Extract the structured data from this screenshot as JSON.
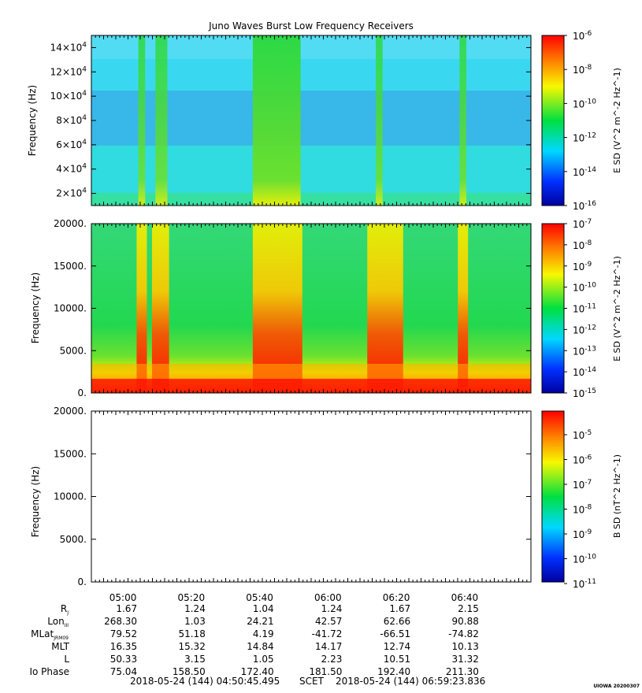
{
  "title": "Juno Waves Burst Low Frequency Receivers",
  "panels": [
    {
      "ylabel": "Frequency (Hz)",
      "yticks": [
        "2x10^4",
        "4x10^4",
        "6x10^4",
        "8x10^4",
        "10x10^4",
        "12x10^4",
        "14x10^4"
      ],
      "cbar_label": "E SD (V^2 m^-2 Hz^-1)",
      "cbar_ticks": [
        "10^-6",
        "10^-8",
        "10^-10",
        "10^-12",
        "10^-14",
        "10^-16"
      ]
    },
    {
      "ylabel": "Frequency (Hz)",
      "yticks": [
        "20000.",
        "15000.",
        "10000.",
        "5000.",
        "0."
      ],
      "cbar_label": "E SD (V^2 m^-2 Hz^-1)",
      "cbar_ticks": [
        "10^-7",
        "10^-8",
        "10^-9",
        "10^-10",
        "10^-11",
        "10^-12",
        "10^-13",
        "10^-14",
        "10^-15"
      ]
    },
    {
      "ylabel": "Frequency (Hz)",
      "yticks": [
        "20000.",
        "15000.",
        "10000.",
        "5000.",
        "0."
      ],
      "cbar_label": "B SD (nT^2 Hz^-1)",
      "cbar_ticks": [
        "10^-5",
        "10^-6",
        "10^-7",
        "10^-8",
        "10^-9",
        "10^-10",
        "10^-11"
      ]
    }
  ],
  "x_ticks": [
    "05:00",
    "05:20",
    "05:40",
    "06:00",
    "06:20",
    "06:40"
  ],
  "ephemeris": [
    {
      "label": "R",
      "sub": "J",
      "values": [
        "1.67",
        "1.24",
        "1.04",
        "1.24",
        "1.67",
        "2.15"
      ]
    },
    {
      "label": "Lon",
      "sub": "III",
      "values": [
        "268.30",
        "1.03",
        "24.21",
        "42.57",
        "62.66",
        "90.88"
      ]
    },
    {
      "label": "MLat",
      "sub": "JRM09",
      "values": [
        "79.52",
        "51.18",
        "4.19",
        "-41.72",
        "-66.51",
        "-74.82"
      ]
    },
    {
      "label": "MLT",
      "sub": "",
      "values": [
        "16.35",
        "15.32",
        "14.84",
        "14.17",
        "12.74",
        "10.13"
      ]
    },
    {
      "label": "L",
      "sub": "",
      "values": [
        "50.33",
        "3.15",
        "1.05",
        "2.23",
        "10.51",
        "31.32"
      ]
    },
    {
      "label": "Io Phase",
      "sub": "",
      "values": [
        "75.04",
        "158.50",
        "172.40",
        "181.50",
        "192.40",
        "211.30"
      ]
    }
  ],
  "time_start": "2018-05-24 (144) 04:50:45.495",
  "time_mid_label": "SCET",
  "time_end": "2018-05-24 (144) 06:59:23.836",
  "stamp": "UIOWA 20200307",
  "colors": {
    "background_panel1": "#3ad8f0",
    "background_panel2": "#36e04a",
    "panel3_fill": "#ffffff",
    "colormap": [
      "#0000a0",
      "#0030ff",
      "#00d8ff",
      "#00e040",
      "#f8f800",
      "#ff8000",
      "#ff0000"
    ]
  },
  "chart_data": [
    {
      "type": "heatmap",
      "title": "Juno Waves Burst Low Frequency Receivers",
      "ylabel": "Frequency (Hz)",
      "ylim": [
        10000,
        150000
      ],
      "xlim": [
        "04:50:45",
        "06:59:23"
      ],
      "zlabel": "E SD (V^2 m^-2 Hz^-1)",
      "zlim": [
        1e-16,
        1e-06
      ],
      "bursts": [
        {
          "start": "05:04:30",
          "end": "05:06:30",
          "level": "moderate"
        },
        {
          "start": "05:09:30",
          "end": "05:13:00",
          "level": "moderate"
        },
        {
          "start": "05:38:00",
          "end": "05:45:30",
          "level": "strong"
        },
        {
          "start": "05:45:30",
          "end": "05:52:00",
          "level": "strong"
        },
        {
          "start": "06:14:00",
          "end": "06:16:00",
          "level": "moderate"
        },
        {
          "start": "06:38:30",
          "end": "06:40:30",
          "level": "moderate"
        }
      ]
    },
    {
      "type": "heatmap",
      "ylabel": "Frequency (Hz)",
      "ylim": [
        0,
        20000
      ],
      "xlim": [
        "04:50:45",
        "06:59:23"
      ],
      "zlabel": "E SD (V^2 m^-2 Hz^-1)",
      "zlim": [
        1e-15,
        1e-07
      ],
      "bursts": [
        {
          "start": "05:04:00",
          "end": "05:07:00",
          "level": "strong"
        },
        {
          "start": "05:08:30",
          "end": "05:13:30",
          "level": "strong"
        },
        {
          "start": "05:38:00",
          "end": "05:52:30",
          "level": "strong"
        },
        {
          "start": "06:11:30",
          "end": "06:22:00",
          "level": "strong"
        },
        {
          "start": "06:38:00",
          "end": "06:41:00",
          "level": "strong"
        }
      ]
    },
    {
      "type": "heatmap",
      "ylabel": "Frequency (Hz)",
      "ylim": [
        0,
        20000
      ],
      "xlim": [
        "04:50:45",
        "06:59:23"
      ],
      "zlabel": "B SD (nT^2 Hz^-1)",
      "zlim": [
        1e-11,
        0.0001
      ],
      "bursts": []
    }
  ]
}
